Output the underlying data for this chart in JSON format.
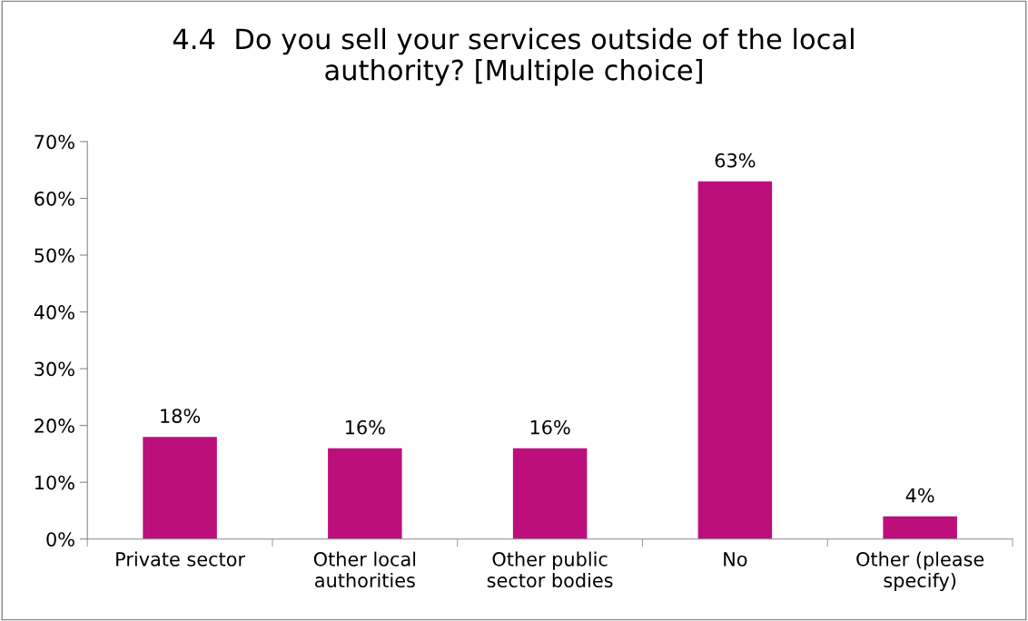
{
  "chart_data": {
    "type": "bar",
    "title": "4.4  Do you sell your services outside of the local\nauthority? [Multiple choice]",
    "categories": [
      "Private sector",
      "Other local\nauthorities",
      "Other public\nsector bodies",
      "No",
      "Other (please\nspecify)"
    ],
    "values": [
      18,
      16,
      16,
      63,
      4
    ],
    "value_labels": [
      "18%",
      "16%",
      "16%",
      "63%",
      "4%"
    ],
    "color": "#bc0f7c",
    "ylim": [
      0,
      70
    ],
    "yticks": [
      {
        "value": 0,
        "label": "0%"
      },
      {
        "value": 10,
        "label": "10%"
      },
      {
        "value": 20,
        "label": "20%"
      },
      {
        "value": 30,
        "label": "30%"
      },
      {
        "value": 40,
        "label": "40%"
      },
      {
        "value": 50,
        "label": "50%"
      },
      {
        "value": 60,
        "label": "60%"
      },
      {
        "value": 70,
        "label": "70%"
      }
    ],
    "grid": false,
    "legend": false
  }
}
